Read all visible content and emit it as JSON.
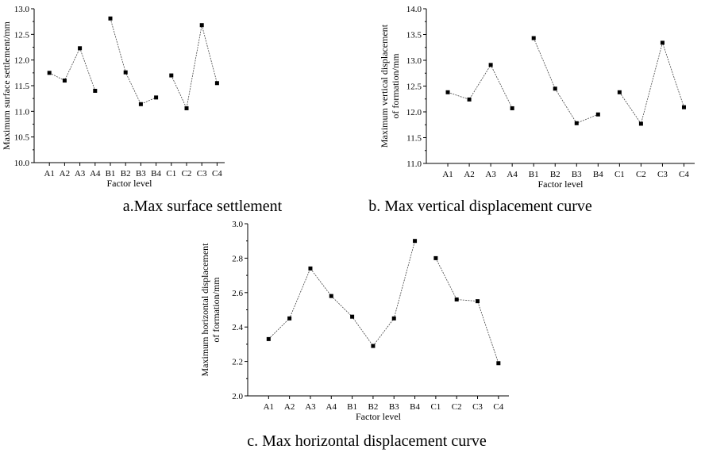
{
  "chart_data": [
    {
      "type": "line",
      "caption": "a.Max surface settlement",
      "xlabel": "Factor level",
      "ylabel": [
        "Maximum surface settlement/mm"
      ],
      "categories": [
        "A1",
        "A2",
        "A3",
        "A4",
        "B1",
        "B2",
        "B3",
        "B4",
        "C1",
        "C2",
        "C3",
        "C4"
      ],
      "groups": [
        {
          "values": [
            11.75,
            11.6,
            12.23,
            11.4
          ]
        },
        {
          "values": [
            12.81,
            11.76,
            11.14,
            11.27
          ]
        },
        {
          "values": [
            11.7,
            11.06,
            12.68,
            11.55
          ]
        }
      ],
      "ylim": [
        10.0,
        13.0
      ],
      "yticks": [
        "10.0",
        "10.5",
        "11.0",
        "11.5",
        "12.0",
        "12.5",
        "13.0"
      ],
      "grid": false
    },
    {
      "type": "line",
      "caption": "b. Max vertical displacement curve",
      "xlabel": "Factor level",
      "ylabel": [
        "Maximum vertical displacement",
        "of formation/mm"
      ],
      "categories": [
        "A1",
        "A2",
        "A3",
        "A4",
        "B1",
        "B2",
        "B3",
        "B4",
        "C1",
        "C2",
        "C3",
        "C4"
      ],
      "groups": [
        {
          "values": [
            12.38,
            12.24,
            12.91,
            12.07
          ]
        },
        {
          "values": [
            13.43,
            12.45,
            11.78,
            11.95
          ]
        },
        {
          "values": [
            12.38,
            11.77,
            13.34,
            12.09
          ]
        }
      ],
      "ylim": [
        11.0,
        14.0
      ],
      "yticks": [
        "11.0",
        "11.5",
        "12.0",
        "12.5",
        "13.0",
        "13.5",
        "14.0"
      ],
      "grid": false
    },
    {
      "type": "line",
      "caption": "c. Max horizontal displacement curve",
      "xlabel": "Factor level",
      "ylabel": [
        "Maximum horizontal displacement",
        "of formation/mm"
      ],
      "categories": [
        "A1",
        "A2",
        "A3",
        "A4",
        "B1",
        "B2",
        "B3",
        "B4",
        "C1",
        "C2",
        "C3",
        "C4"
      ],
      "groups": [
        {
          "values": [
            2.33,
            2.45,
            2.74,
            2.58,
            2.46,
            2.29,
            2.45,
            2.9
          ]
        },
        {
          "values": [
            2.8,
            2.56,
            2.55,
            2.19
          ]
        }
      ],
      "ylim": [
        2.0,
        3.0
      ],
      "yticks": [
        "2.0",
        "2.2",
        "2.4",
        "2.6",
        "2.8",
        "3.0"
      ],
      "grid": false
    }
  ]
}
